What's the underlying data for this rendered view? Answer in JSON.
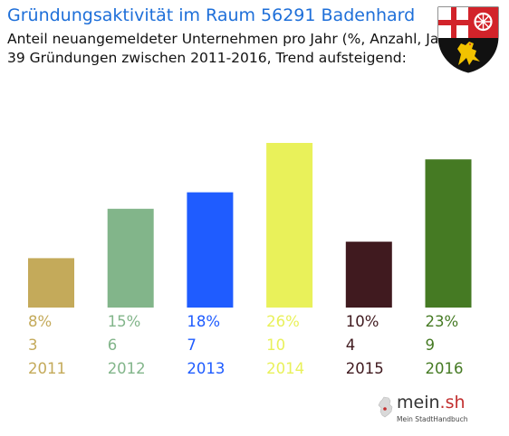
{
  "header": {
    "title": "Gründungsaktivität im Raum 56291 Badenhard",
    "subtitle_line1": "Anteil neuangemeldeter Unternehmen pro Jahr (%, Anzahl, Jahr)",
    "subtitle_line2": "39 Gründungen zwischen 2011-2016, Trend aufsteigend:"
  },
  "crest": {
    "icon": "rhineland-palatinate-coat-of-arms-icon"
  },
  "branding": {
    "name_main": "mein",
    "name_accent": ".sh",
    "tagline": "Mein StadtHandbuch",
    "icon": "germany-map-icon"
  },
  "chart_data": {
    "type": "bar",
    "categories": [
      "2011",
      "2012",
      "2013",
      "2014",
      "2015",
      "2016"
    ],
    "percent_labels": [
      "8%",
      "15%",
      "18%",
      "26%",
      "10%",
      "23%"
    ],
    "count_labels": [
      "3",
      "6",
      "7",
      "10",
      "4",
      "9"
    ],
    "values": [
      3,
      6,
      7,
      10,
      4,
      9
    ],
    "colors": [
      "#c4aa5a",
      "#82b58a",
      "#1f5cff",
      "#e9f15a",
      "#401a1f",
      "#457a23"
    ],
    "title": "Gründungsaktivität im Raum 56291 Badenhard",
    "grid": false,
    "legend": "none"
  }
}
